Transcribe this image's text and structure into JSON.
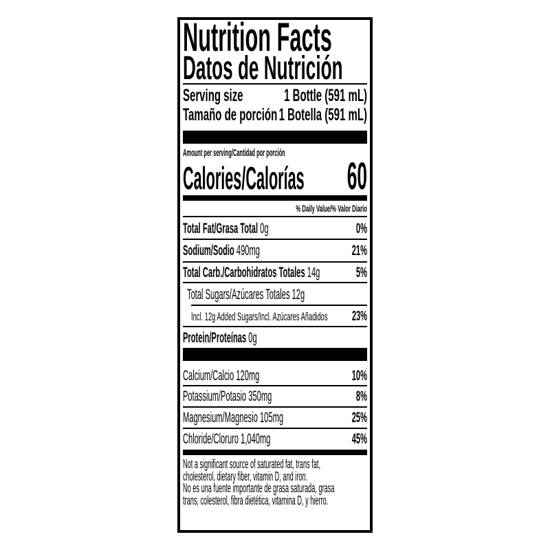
{
  "title": "Nutrition Facts",
  "title_es": "Datos de Nutrición",
  "serving": {
    "label": "Serving size",
    "value": "1 Bottle (591 mL)",
    "label_es": "Tamaño de porción",
    "value_es": "1 Botella (591 mL)"
  },
  "amount_per_serving": "Amount per serving/Cantidad por porción",
  "calories": {
    "label": "Calories/Calorías",
    "value": "60"
  },
  "daily_value_header": "% Daily Value/% Valor Diario",
  "nutrients": [
    {
      "name": "Total Fat/Grasa Total",
      "amount": "0g",
      "dv": "0%"
    },
    {
      "name": "Sodium/Sodio",
      "amount": "490mg",
      "dv": "21%"
    },
    {
      "name": "Total Carb./Carbohidratos Totales",
      "amount": "14g",
      "dv": "5%"
    },
    {
      "name": "Total Sugars/Azúcares Totales",
      "amount": "12g",
      "dv": ""
    },
    {
      "name": "Incl. 12g Added Sugars/Incl. Azúcares Añadidos",
      "amount": "",
      "dv": "23%"
    },
    {
      "name": "Protein/Proteínas",
      "amount": "0g",
      "dv": ""
    }
  ],
  "minerals": [
    {
      "name": "Calcium/Calcio",
      "amount": "120mg",
      "dv": "10%"
    },
    {
      "name": "Potassium/Potasio",
      "amount": "350mg",
      "dv": "8%"
    },
    {
      "name": "Magnesium/Magnesio",
      "amount": "105mg",
      "dv": "25%"
    },
    {
      "name": "Chloride/Cloruro",
      "amount": "1,040mg",
      "dv": "45%"
    }
  ],
  "footnote_lines": [
    "Not a significant source of saturated fat, trans fat,",
    "cholesterol, dietary fiber, vitamin D, and iron.",
    "No es una fuente importante de grasa saturada, grasa",
    "trans, colesterol, fibra dietética, vitamina D, y hierro."
  ]
}
